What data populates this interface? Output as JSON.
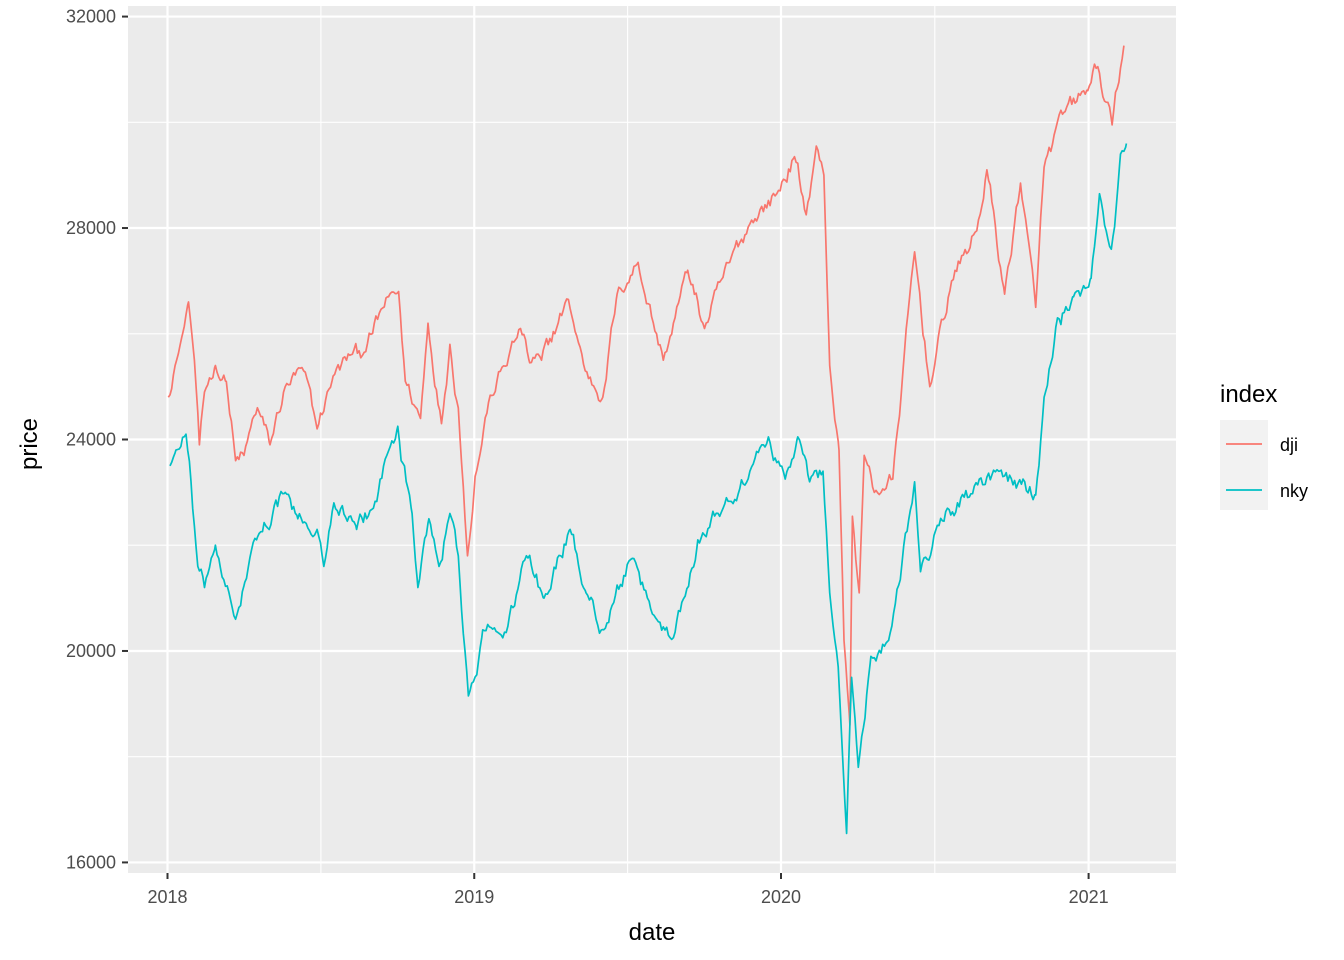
{
  "chart_data": {
    "type": "line",
    "xlabel": "date",
    "ylabel": "price",
    "x_ticks": [
      "2018",
      "2019",
      "2020",
      "2021"
    ],
    "y_ticks": [
      16000,
      20000,
      24000,
      28000,
      32000
    ],
    "xlim": [
      "2017-11-15",
      "2021-04-15"
    ],
    "ylim": [
      15800,
      32200
    ],
    "grid": true,
    "legend": {
      "title": "index",
      "position": "right"
    },
    "series": [
      {
        "name": "dji",
        "color": "#F8766D",
        "points": [
          [
            "2018-01-02",
            24800
          ],
          [
            "2018-01-10",
            25400
          ],
          [
            "2018-01-19",
            26000
          ],
          [
            "2018-01-26",
            26600
          ],
          [
            "2018-02-02",
            25500
          ],
          [
            "2018-02-08",
            23900
          ],
          [
            "2018-02-14",
            24900
          ],
          [
            "2018-02-27",
            25400
          ],
          [
            "2018-03-12",
            25100
          ],
          [
            "2018-03-23",
            23600
          ],
          [
            "2018-04-02",
            23700
          ],
          [
            "2018-04-18",
            24600
          ],
          [
            "2018-05-03",
            23900
          ],
          [
            "2018-05-21",
            25000
          ],
          [
            "2018-06-12",
            25300
          ],
          [
            "2018-06-28",
            24200
          ],
          [
            "2018-07-17",
            25200
          ],
          [
            "2018-08-07",
            25600
          ],
          [
            "2018-08-23",
            25650
          ],
          [
            "2018-09-21",
            26700
          ],
          [
            "2018-10-03",
            26800
          ],
          [
            "2018-10-11",
            25100
          ],
          [
            "2018-10-29",
            24400
          ],
          [
            "2018-11-07",
            26200
          ],
          [
            "2018-11-23",
            24300
          ],
          [
            "2018-12-03",
            25800
          ],
          [
            "2018-12-13",
            24600
          ],
          [
            "2018-12-24",
            21800
          ],
          [
            "2019-01-02",
            23300
          ],
          [
            "2019-01-18",
            24700
          ],
          [
            "2019-02-25",
            26100
          ],
          [
            "2019-03-08",
            25450
          ],
          [
            "2019-03-22",
            25500
          ],
          [
            "2019-04-23",
            26650
          ],
          [
            "2019-05-13",
            25300
          ],
          [
            "2019-06-03",
            24800
          ],
          [
            "2019-06-20",
            26750
          ],
          [
            "2019-07-15",
            27350
          ],
          [
            "2019-08-14",
            25500
          ],
          [
            "2019-09-12",
            27200
          ],
          [
            "2019-10-02",
            26100
          ],
          [
            "2019-11-01",
            27350
          ],
          [
            "2019-11-27",
            28150
          ],
          [
            "2019-12-27",
            28650
          ],
          [
            "2020-01-17",
            29350
          ],
          [
            "2020-01-31",
            28250
          ],
          [
            "2020-02-12",
            29550
          ],
          [
            "2020-02-21",
            29000
          ],
          [
            "2020-02-28",
            25400
          ],
          [
            "2020-03-10",
            23800
          ],
          [
            "2020-03-16",
            20200
          ],
          [
            "2020-03-23",
            18600
          ],
          [
            "2020-03-26",
            22550
          ],
          [
            "2020-04-03",
            21100
          ],
          [
            "2020-04-09",
            23700
          ],
          [
            "2020-04-21",
            23000
          ],
          [
            "2020-05-13",
            23250
          ],
          [
            "2020-06-08",
            27550
          ],
          [
            "2020-06-26",
            25000
          ],
          [
            "2020-07-22",
            27000
          ],
          [
            "2020-08-21",
            27950
          ],
          [
            "2020-09-02",
            29100
          ],
          [
            "2020-09-23",
            26750
          ],
          [
            "2020-10-12",
            28850
          ],
          [
            "2020-10-30",
            26500
          ],
          [
            "2020-11-09",
            29150
          ],
          [
            "2020-12-04",
            30200
          ],
          [
            "2020-12-31",
            30600
          ],
          [
            "2021-01-08",
            31100
          ],
          [
            "2021-01-29",
            29950
          ],
          [
            "2021-02-12",
            31450
          ]
        ]
      },
      {
        "name": "nky",
        "color": "#00BFC4",
        "points": [
          [
            "2018-01-04",
            23500
          ],
          [
            "2018-01-11",
            23800
          ],
          [
            "2018-01-23",
            24100
          ],
          [
            "2018-02-06",
            21600
          ],
          [
            "2018-02-14",
            21200
          ],
          [
            "2018-02-27",
            22000
          ],
          [
            "2018-03-07",
            21400
          ],
          [
            "2018-03-23",
            20600
          ],
          [
            "2018-04-03",
            21300
          ],
          [
            "2018-04-18",
            22150
          ],
          [
            "2018-05-21",
            23000
          ],
          [
            "2018-06-05",
            22500
          ],
          [
            "2018-06-28",
            22300
          ],
          [
            "2018-07-06",
            21600
          ],
          [
            "2018-07-18",
            22800
          ],
          [
            "2018-08-14",
            22300
          ],
          [
            "2018-09-03",
            22700
          ],
          [
            "2018-09-19",
            23700
          ],
          [
            "2018-10-02",
            24250
          ],
          [
            "2018-10-10",
            23500
          ],
          [
            "2018-10-19",
            22600
          ],
          [
            "2018-10-26",
            21200
          ],
          [
            "2018-11-08",
            22500
          ],
          [
            "2018-11-20",
            21600
          ],
          [
            "2018-12-03",
            22600
          ],
          [
            "2018-12-13",
            21800
          ],
          [
            "2018-12-25",
            19150
          ],
          [
            "2019-01-04",
            19550
          ],
          [
            "2019-01-11",
            20400
          ],
          [
            "2019-02-08",
            20350
          ],
          [
            "2019-03-04",
            21800
          ],
          [
            "2019-03-25",
            21000
          ],
          [
            "2019-04-25",
            22300
          ],
          [
            "2019-05-14",
            21100
          ],
          [
            "2019-06-04",
            20400
          ],
          [
            "2019-07-04",
            21700
          ],
          [
            "2019-08-06",
            20600
          ],
          [
            "2019-08-26",
            20250
          ],
          [
            "2019-09-24",
            22100
          ],
          [
            "2019-10-28",
            22900
          ],
          [
            "2019-11-25",
            23400
          ],
          [
            "2019-12-17",
            24050
          ],
          [
            "2020-01-06",
            23250
          ],
          [
            "2020-01-21",
            24050
          ],
          [
            "2020-02-04",
            23200
          ],
          [
            "2020-02-20",
            23400
          ],
          [
            "2020-02-28",
            21100
          ],
          [
            "2020-03-09",
            19700
          ],
          [
            "2020-03-19",
            16550
          ],
          [
            "2020-03-25",
            19500
          ],
          [
            "2020-04-02",
            17800
          ],
          [
            "2020-04-17",
            19900
          ],
          [
            "2020-05-08",
            20200
          ],
          [
            "2020-06-08",
            23200
          ],
          [
            "2020-06-15",
            21500
          ],
          [
            "2020-07-17",
            22700
          ],
          [
            "2020-08-31",
            23150
          ],
          [
            "2020-09-17",
            23400
          ],
          [
            "2020-10-30",
            22950
          ],
          [
            "2020-11-09",
            24800
          ],
          [
            "2020-11-25",
            26300
          ],
          [
            "2020-12-14",
            26700
          ],
          [
            "2021-01-04",
            27050
          ],
          [
            "2021-01-14",
            28650
          ],
          [
            "2021-01-28",
            27600
          ],
          [
            "2021-02-08",
            29400
          ],
          [
            "2021-02-15",
            29600
          ]
        ]
      }
    ]
  }
}
